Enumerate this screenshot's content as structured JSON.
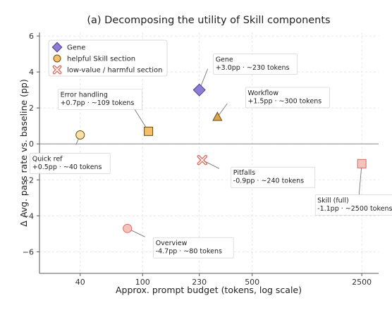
{
  "chart_data": {
    "type": "scatter",
    "title": "(a) Decomposing the utility of Skill components",
    "xlabel": "Approx. prompt budget (tokens, log scale)",
    "ylabel": "Δ Avg. pass rate vs. baseline (pp)",
    "x_scale": "log",
    "xlim": [
      22,
      3200
    ],
    "ylim": [
      -7.2,
      6.2
    ],
    "x_ticks": [
      40,
      100,
      230,
      500,
      2500
    ],
    "x_tick_labels": [
      "40",
      "100",
      "230",
      "500",
      "2500"
    ],
    "y_ticks": [
      -6,
      -4,
      -2,
      0,
      2,
      4,
      6
    ],
    "y_tick_labels": [
      "−6",
      "−4",
      "−2",
      "0",
      "2",
      "4",
      "6"
    ],
    "grid": true,
    "zero_line": true,
    "legend_position": "top-left",
    "legend": [
      {
        "key": "gene",
        "label": "Gene",
        "marker": "diamond",
        "color": "#8e7cd6",
        "edge": "#4a3a90"
      },
      {
        "key": "helpful",
        "label": "helpful Skill section",
        "marker": "circle",
        "color": "#f5bf6a",
        "edge": "#6b4a10"
      },
      {
        "key": "harmful",
        "label": "low-value / harmful section",
        "marker": "x",
        "color": "#ec8a80",
        "edge": "#d9685c"
      }
    ],
    "points": [
      {
        "name": "Gene",
        "x": 230,
        "y": 3.0,
        "marker": "diamond",
        "fill": "#8e7cd6",
        "edge": "#4a3a90",
        "label_lines": [
          "Gene",
          "+3.0pp · ~230 tokens"
        ]
      },
      {
        "name": "Workflow",
        "x": 300,
        "y": 1.5,
        "marker": "triangle",
        "fill": "#d9a74a",
        "edge": "#6b4a10",
        "label_lines": [
          "Workflow",
          "+1.5pp · ~300 tokens"
        ]
      },
      {
        "name": "Error handling",
        "x": 109,
        "y": 0.7,
        "marker": "square",
        "fill": "#f5bf6a",
        "edge": "#6b4a10",
        "label_lines": [
          "Error handling",
          "+0.7pp · ~109 tokens"
        ]
      },
      {
        "name": "Quick ref",
        "x": 40,
        "y": 0.5,
        "marker": "circle",
        "fill": "#fbe0a6",
        "edge": "#6b4a10",
        "label_lines": [
          "Quick ref",
          "+0.5pp · ~40 tokens"
        ]
      },
      {
        "name": "Pitfalls",
        "x": 240,
        "y": -0.9,
        "marker": "x",
        "fill": "#ec8a80",
        "edge": "#d9685c",
        "label_lines": [
          "Pitfalls",
          "-0.9pp · ~240 tokens"
        ]
      },
      {
        "name": "Skill (full)",
        "x": 2500,
        "y": -1.1,
        "marker": "square",
        "fill": "#f6c2bc",
        "edge": "#d9685c",
        "label_lines": [
          "Skill (full)",
          "-1.1pp · ~2500 tokens"
        ]
      },
      {
        "name": "Overview",
        "x": 80,
        "y": -4.7,
        "marker": "circle",
        "fill": "#f6c2bc",
        "edge": "#d9685c",
        "label_lines": [
          "Overview",
          "-4.7pp · ~80 tokens"
        ]
      }
    ]
  }
}
